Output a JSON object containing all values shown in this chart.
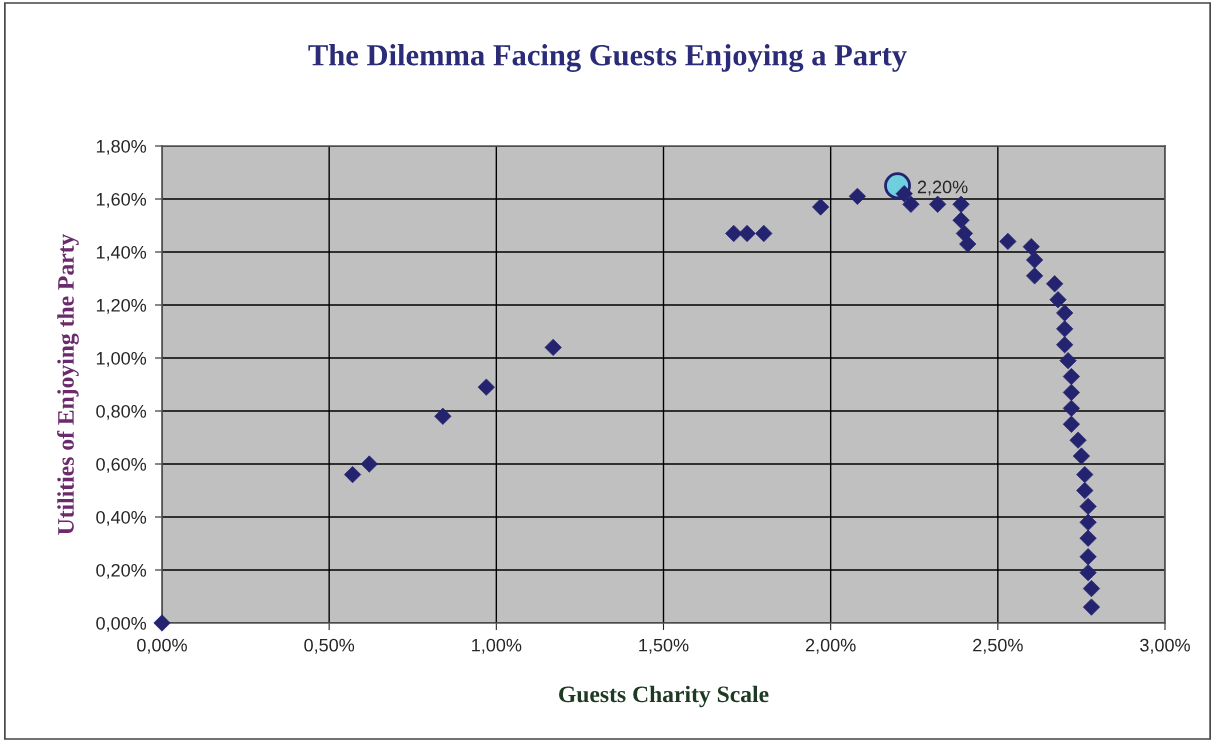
{
  "chart_data": {
    "type": "scatter",
    "title": "The Dilemma Facing Guests Enjoying a Party",
    "xlabel": "Guests Charity Scale",
    "ylabel": "Utilities of Enjoying the Party",
    "xlim": [
      0,
      3
    ],
    "ylim": [
      0,
      1.8
    ],
    "xticks": [
      {
        "value": 0,
        "label": "0,00%"
      },
      {
        "value": 0.5,
        "label": "0,50%"
      },
      {
        "value": 1,
        "label": "1,00%"
      },
      {
        "value": 1.5,
        "label": "1,50%"
      },
      {
        "value": 2,
        "label": "2,00%"
      },
      {
        "value": 2.5,
        "label": "2,50%"
      },
      {
        "value": 3,
        "label": "3,00%"
      }
    ],
    "yticks": [
      {
        "value": 0,
        "label": "0,00%"
      },
      {
        "value": 0.2,
        "label": "0,20%"
      },
      {
        "value": 0.4,
        "label": "0,40%"
      },
      {
        "value": 0.6,
        "label": "0,60%"
      },
      {
        "value": 0.8,
        "label": "0,80%"
      },
      {
        "value": 1,
        "label": "1,00%"
      },
      {
        "value": 1.2,
        "label": "1,20%"
      },
      {
        "value": 1.4,
        "label": "1,40%"
      },
      {
        "value": 1.6,
        "label": "1,60%"
      },
      {
        "value": 1.8,
        "label": "1,80%"
      }
    ],
    "grid": true,
    "series": [
      {
        "color": "#232370",
        "marker": "diamond",
        "x": [
          0,
          0.57,
          0.62,
          0.84,
          0.97,
          1.17,
          1.71,
          1.75,
          1.8,
          1.97,
          2.08,
          2.22,
          2.24,
          2.32,
          2.39,
          2.39,
          2.4,
          2.41,
          2.53,
          2.6,
          2.61,
          2.61,
          2.67,
          2.68,
          2.7,
          2.7,
          2.7,
          2.71,
          2.72,
          2.72,
          2.72,
          2.72,
          2.74,
          2.75,
          2.76,
          2.76,
          2.77,
          2.77,
          2.77,
          2.77,
          2.77,
          2.78,
          2.78
        ],
        "values": [
          0,
          0.56,
          0.6,
          0.78,
          0.89,
          1.04,
          1.47,
          1.47,
          1.47,
          1.57,
          1.61,
          1.62,
          1.58,
          1.58,
          1.58,
          1.52,
          1.47,
          1.43,
          1.44,
          1.42,
          1.37,
          1.31,
          1.28,
          1.22,
          1.17,
          1.11,
          1.05,
          0.99,
          0.93,
          0.87,
          0.81,
          0.75,
          0.69,
          0.63,
          0.56,
          0.5,
          0.44,
          0.38,
          0.32,
          0.25,
          0.19,
          0.13,
          0.06
        ]
      },
      {
        "color": "#6fcfdc",
        "marker": "circle",
        "x": [
          2.2
        ],
        "values": [
          1.65
        ]
      }
    ],
    "annotations": [
      {
        "text": "2,20%",
        "x": 2.2,
        "y": 1.65
      }
    ]
  }
}
